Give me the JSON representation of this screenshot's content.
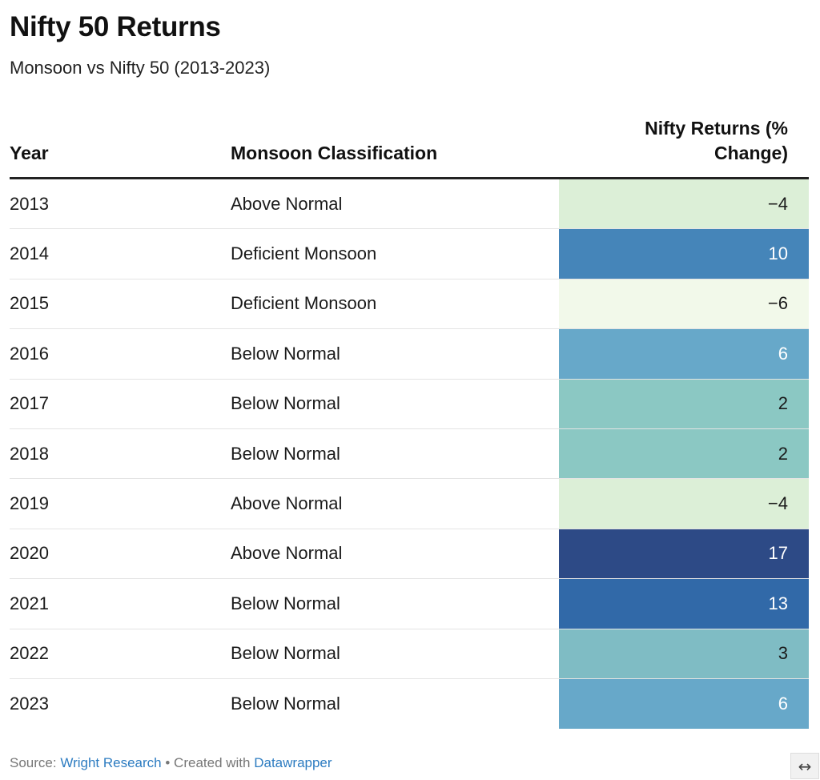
{
  "title": "Nifty 50 Returns",
  "subtitle": "Monsoon vs Nifty 50 (2013-2023)",
  "footer": {
    "source_label": "Source:",
    "source_name": "Wright Research",
    "separator": "•",
    "created_label": "Created with",
    "created_tool": "Datawrapper"
  },
  "expand_icon": "↔",
  "chart_data": {
    "type": "table",
    "title": "Nifty 50 Returns",
    "subtitle": "Monsoon vs Nifty 50 (2013-2023)",
    "columns": [
      "Year",
      "Monsoon Classification",
      "Nifty Returns (% Change)"
    ],
    "rows": [
      {
        "year": "2013",
        "monsoon": "Above Normal",
        "returns": "−4",
        "value": -4,
        "bg": "#dcefd7",
        "fg": "#1a1a1a"
      },
      {
        "year": "2014",
        "monsoon": "Deficient Monsoon",
        "returns": "10",
        "value": 10,
        "bg": "#4585b9",
        "fg": "#ffffff"
      },
      {
        "year": "2015",
        "monsoon": "Deficient Monsoon",
        "returns": "−6",
        "value": -6,
        "bg": "#f2f9ea",
        "fg": "#1a1a1a"
      },
      {
        "year": "2016",
        "monsoon": "Below Normal",
        "returns": "6",
        "value": 6,
        "bg": "#67a8c9",
        "fg": "#ffffff"
      },
      {
        "year": "2017",
        "monsoon": "Below Normal",
        "returns": "2",
        "value": 2,
        "bg": "#8bc8c3",
        "fg": "#1a1a1a"
      },
      {
        "year": "2018",
        "monsoon": "Below Normal",
        "returns": "2",
        "value": 2,
        "bg": "#8bc8c3",
        "fg": "#1a1a1a"
      },
      {
        "year": "2019",
        "monsoon": "Above Normal",
        "returns": "−4",
        "value": -4,
        "bg": "#dcefd7",
        "fg": "#1a1a1a"
      },
      {
        "year": "2020",
        "monsoon": "Above Normal",
        "returns": "17",
        "value": 17,
        "bg": "#2d4a86",
        "fg": "#ffffff"
      },
      {
        "year": "2021",
        "monsoon": "Below Normal",
        "returns": "13",
        "value": 13,
        "bg": "#3169a8",
        "fg": "#ffffff"
      },
      {
        "year": "2022",
        "monsoon": "Below Normal",
        "returns": "3",
        "value": 3,
        "bg": "#7fbcc4",
        "fg": "#1a1a1a"
      },
      {
        "year": "2023",
        "monsoon": "Below Normal",
        "returns": "6",
        "value": 6,
        "bg": "#67a8c9",
        "fg": "#ffffff"
      }
    ]
  }
}
